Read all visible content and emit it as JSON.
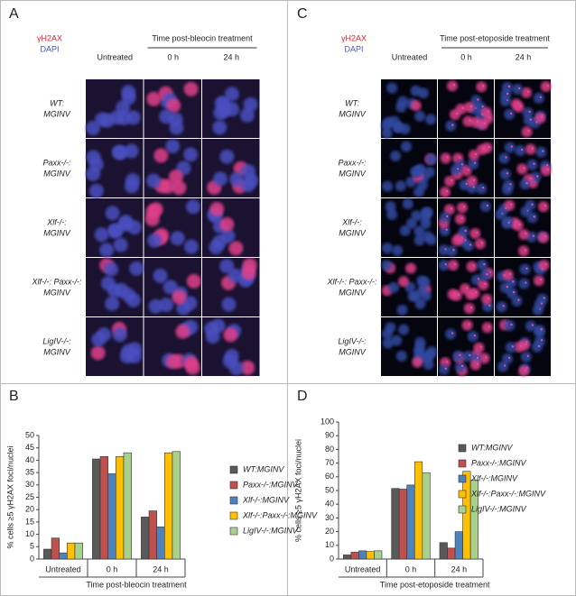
{
  "panels": [
    {
      "label": "A",
      "stain_labels": [
        "γH2AX",
        "DAPI"
      ],
      "header": "Time post-bleocin treatment",
      "columns": [
        "Untreated",
        "0 h",
        "24 h"
      ],
      "rows": [
        [
          "WT:",
          "MGINV"
        ],
        [
          "Paxx-/-:",
          "MGINV"
        ],
        [
          "Xlf-/-:",
          "MGINV"
        ],
        [
          "Xlf-/-: Paxx-/-:",
          "MGINV"
        ],
        [
          "LigIV-/-:",
          "MGINV"
        ]
      ]
    },
    {
      "label": "C",
      "stain_labels": [
        "γH2AX",
        "DAPI"
      ],
      "header": "Time post-etoposide treatment",
      "columns": [
        "Untreated",
        "0 h",
        "24 h"
      ],
      "rows": [
        [
          "WT:",
          "MGINV"
        ],
        [
          "Paxx-/-:",
          "MGINV"
        ],
        [
          "Xlf-/-:",
          "MGINV"
        ],
        [
          "Xlf-/-: Paxx-/-:",
          "MGINV"
        ],
        [
          "LigIV-/-:",
          "MGINV"
        ]
      ]
    }
  ],
  "chart_data": [
    {
      "label": "B",
      "type": "bar",
      "y_label": "% cells ≥5 γH2AX foci/nuclei",
      "x_label": "Time post-bleocin treatment",
      "categories": [
        "Untreated",
        "0 h",
        "24 h"
      ],
      "ylim": [
        0,
        50
      ],
      "yticks": [
        0,
        5,
        10,
        15,
        20,
        25,
        30,
        35,
        40,
        45,
        50
      ],
      "series": [
        {
          "name": "WT:MGINV",
          "color": "#595959",
          "values": [
            4,
            40.5,
            17
          ]
        },
        {
          "name": "Paxx-/-:MGINV",
          "color": "#c0504d",
          "values": [
            8.5,
            41.5,
            19.5
          ]
        },
        {
          "name": "Xlf-/-:MGINV",
          "color": "#4f81bd",
          "values": [
            2.5,
            34.5,
            13
          ]
        },
        {
          "name": "Xlf-/-:Paxx-/-:MGINV",
          "color": "#ffc000",
          "values": [
            6.5,
            41.5,
            43
          ]
        },
        {
          "name": "LigIV-/-:MGINV",
          "color": "#a9d18e",
          "values": [
            6.5,
            43,
            43.5
          ]
        }
      ]
    },
    {
      "label": "D",
      "type": "bar",
      "y_label": "% cells ≥5 γH2AX foci/nuclei",
      "x_label": "Time post-etoposide treatment",
      "categories": [
        "Untreated",
        "0 h",
        "24 h"
      ],
      "ylim": [
        0,
        100
      ],
      "yticks": [
        0,
        10,
        20,
        30,
        40,
        50,
        60,
        70,
        80,
        90,
        100
      ],
      "series": [
        {
          "name": "WT:MGINV",
          "color": "#595959",
          "values": [
            3,
            51.5,
            12
          ]
        },
        {
          "name": "Paxx-/-:MGINV",
          "color": "#c0504d",
          "values": [
            5,
            51,
            8
          ]
        },
        {
          "name": "Xlf-/-:MGINV",
          "color": "#4f81bd",
          "values": [
            6,
            54,
            20
          ]
        },
        {
          "name": "Xlf-/-:Paxx-/-:MGINV",
          "color": "#ffc000",
          "values": [
            5.5,
            71,
            64
          ]
        },
        {
          "name": "LigIV-/-:MGINV",
          "color": "#a9d18e",
          "values": [
            6,
            63,
            57.5
          ]
        }
      ]
    }
  ]
}
